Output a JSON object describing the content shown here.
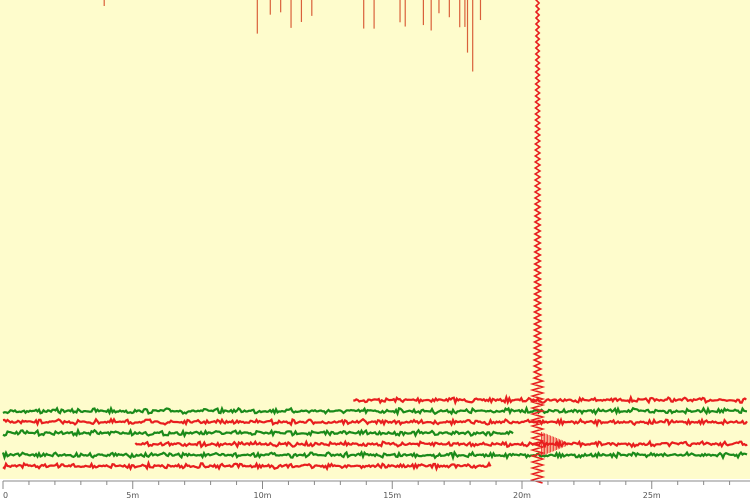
{
  "chart_data": {
    "type": "line",
    "title": "",
    "xlabel": "",
    "ylabel": "",
    "xlim": [
      0,
      28.7
    ],
    "x_unit": "minutes",
    "x_ticks": [
      0,
      5,
      10,
      15,
      20,
      25
    ],
    "x_tick_labels": [
      "0",
      "5m",
      "10m",
      "15m",
      "20m",
      "25m"
    ],
    "minor_tick_step": 1,
    "background_color": "#fefccc",
    "colors": {
      "red": "#e81e1e",
      "green": "#1a8a1a",
      "spike": "#e81e1e"
    },
    "traces": [
      {
        "color": "red",
        "start": 13.5,
        "end": 28.7
      },
      {
        "color": "green",
        "start": 0,
        "end": 28.7
      },
      {
        "color": "red",
        "start": 0,
        "end": 28.7
      },
      {
        "color": "green",
        "start": 0,
        "end": 19.7
      },
      {
        "color": "red",
        "start": 5.1,
        "end": 28.7
      },
      {
        "color": "green",
        "start": 0,
        "end": 28.7
      },
      {
        "color": "red",
        "start": 0,
        "end": 18.8
      }
    ],
    "main_event_time": 20.6,
    "top_spikes_times": [
      3.9,
      9.8,
      10.3,
      10.7,
      11.1,
      11.5,
      11.9,
      13.9,
      14.3,
      15.3,
      15.5,
      16.2,
      16.5,
      16.8,
      17.2,
      17.6,
      17.8,
      17.9,
      18.1,
      18.4
    ]
  }
}
